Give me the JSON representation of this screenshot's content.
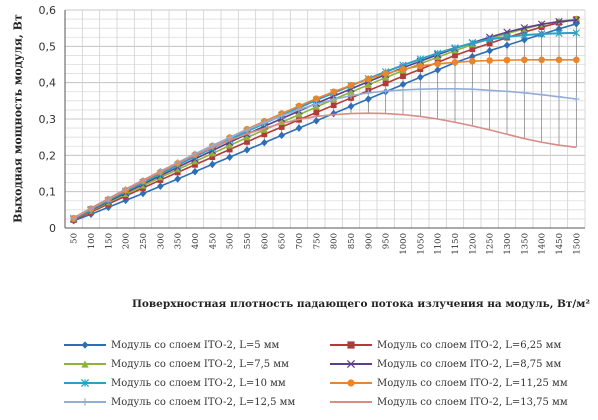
{
  "chart_data": {
    "type": "line",
    "title": "",
    "xlabel": "Поверхностная плотность падающего потока излучения на модуль, Вт/м²",
    "ylabel": "Выходная мощность модуля, Вт",
    "ylim": [
      0,
      0.6
    ],
    "yticks": [
      "0",
      "0,1",
      "0,2",
      "0,3",
      "0,4",
      "0,5",
      "0,6"
    ],
    "categories": [
      50,
      100,
      150,
      200,
      250,
      300,
      350,
      400,
      450,
      500,
      550,
      600,
      650,
      700,
      750,
      800,
      850,
      900,
      950,
      1000,
      1050,
      1100,
      1150,
      1200,
      1250,
      1300,
      1350,
      1400,
      1450,
      1500
    ],
    "grid": true,
    "legend_position": "bottom",
    "series": [
      {
        "name": "Модуль со слоем ITO-2, L=5 мм",
        "color": "#2f6eb5",
        "marker": "diamond",
        "values": [
          0.02,
          0.038,
          0.057,
          0.076,
          0.095,
          0.115,
          0.135,
          0.155,
          0.175,
          0.195,
          0.215,
          0.235,
          0.255,
          0.275,
          0.295,
          0.315,
          0.335,
          0.355,
          0.375,
          0.395,
          0.415,
          0.435,
          0.455,
          0.472,
          0.488,
          0.503,
          0.518,
          0.533,
          0.548,
          0.562
        ]
      },
      {
        "name": "Модуль со слоем ITO-2, L=6,25 мм",
        "color": "#b33a3a",
        "marker": "square",
        "values": [
          0.022,
          0.044,
          0.066,
          0.088,
          0.11,
          0.132,
          0.153,
          0.174,
          0.195,
          0.216,
          0.237,
          0.258,
          0.278,
          0.298,
          0.318,
          0.338,
          0.358,
          0.378,
          0.398,
          0.418,
          0.437,
          0.456,
          0.475,
          0.492,
          0.508,
          0.524,
          0.539,
          0.553,
          0.565,
          0.575
        ]
      },
      {
        "name": "Модуль со слоем ITO-2, L=7,5 мм",
        "color": "#8db33a",
        "marker": "triangle",
        "values": [
          0.024,
          0.047,
          0.07,
          0.093,
          0.116,
          0.139,
          0.161,
          0.183,
          0.205,
          0.227,
          0.249,
          0.27,
          0.291,
          0.312,
          0.333,
          0.354,
          0.374,
          0.394,
          0.414,
          0.433,
          0.452,
          0.47,
          0.488,
          0.505,
          0.521,
          0.535,
          0.548,
          0.56,
          0.569,
          0.575
        ]
      },
      {
        "name": "Модуль со слоем ITO-2, L=8,75 мм",
        "color": "#5b3f8c",
        "marker": "x",
        "values": [
          0.025,
          0.049,
          0.073,
          0.097,
          0.121,
          0.144,
          0.167,
          0.19,
          0.213,
          0.236,
          0.258,
          0.28,
          0.301,
          0.322,
          0.343,
          0.363,
          0.383,
          0.403,
          0.422,
          0.441,
          0.459,
          0.477,
          0.494,
          0.51,
          0.525,
          0.539,
          0.551,
          0.561,
          0.568,
          0.572
        ]
      },
      {
        "name": "Модуль со слоем ITO-2, L=10 мм",
        "color": "#2aa1c4",
        "marker": "star",
        "values": [
          0.026,
          0.051,
          0.076,
          0.101,
          0.125,
          0.149,
          0.173,
          0.197,
          0.22,
          0.243,
          0.266,
          0.288,
          0.31,
          0.331,
          0.352,
          0.372,
          0.392,
          0.411,
          0.43,
          0.448,
          0.465,
          0.481,
          0.496,
          0.509,
          0.519,
          0.526,
          0.531,
          0.534,
          0.536,
          0.537
        ]
      },
      {
        "name": "Модуль со слоем ITO-2, L=11,25 мм",
        "color": "#e8862e",
        "marker": "circle",
        "values": [
          0.027,
          0.053,
          0.079,
          0.104,
          0.129,
          0.154,
          0.178,
          0.202,
          0.226,
          0.249,
          0.272,
          0.294,
          0.315,
          0.336,
          0.356,
          0.375,
          0.393,
          0.41,
          0.425,
          0.437,
          0.446,
          0.452,
          0.456,
          0.459,
          0.461,
          0.462,
          0.463,
          0.463,
          0.463,
          0.463
        ]
      },
      {
        "name": "Модуль со слоем ITO-2, L=12,5 мм",
        "color": "#94acd6",
        "marker": "plus",
        "values": [
          0.027,
          0.054,
          0.08,
          0.106,
          0.131,
          0.156,
          0.18,
          0.204,
          0.227,
          0.249,
          0.27,
          0.29,
          0.309,
          0.326,
          0.341,
          0.354,
          0.364,
          0.372,
          0.377,
          0.38,
          0.382,
          0.383,
          0.383,
          0.382,
          0.379,
          0.376,
          0.372,
          0.367,
          0.361,
          0.355
        ]
      },
      {
        "name": "Модуль со слоем ITO-2, L=13,75 мм",
        "color": "#d98b85",
        "marker": "none",
        "values": [
          0.028,
          0.055,
          0.081,
          0.107,
          0.132,
          0.156,
          0.179,
          0.201,
          0.222,
          0.241,
          0.259,
          0.274,
          0.288,
          0.299,
          0.307,
          0.312,
          0.315,
          0.316,
          0.315,
          0.312,
          0.307,
          0.3,
          0.291,
          0.281,
          0.27,
          0.258,
          0.246,
          0.236,
          0.228,
          0.222
        ]
      }
    ]
  }
}
